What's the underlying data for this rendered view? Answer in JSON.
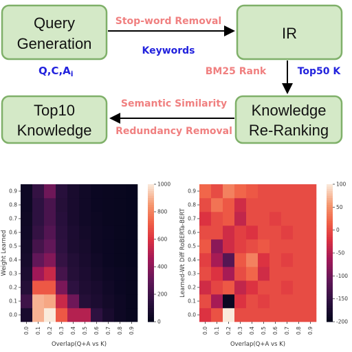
{
  "flow": {
    "boxes": {
      "query_generation": [
        "Query",
        "Generation"
      ],
      "ir": [
        "IR"
      ],
      "top10_knowledge": [
        "Top10",
        "Knowledge"
      ],
      "knowledge_reranking": [
        "Knowledge",
        "Re-Ranking"
      ]
    },
    "labels": {
      "stopword_removal": "Stop-word Removal",
      "keywords": "Keywords",
      "qca": "Q,C,A",
      "qca_sub": "i",
      "bm25_rank": "BM25 Rank",
      "top50k": "Top50 K",
      "semantic_similarity": "Semantic Similarity",
      "redundancy_removal": "Redundancy Removal"
    },
    "colors": {
      "box_fill": "#d4e9c7",
      "box_stroke": "#7fb069",
      "red_label": "#f08080",
      "blue_label": "#2222dd"
    }
  },
  "chart_data": [
    {
      "type": "heatmap",
      "xlabel": "Overlap(Q+A vs K)",
      "ylabel": "Weight Learned",
      "x": [
        "0.0",
        "0.1",
        "0.2",
        "0.3",
        "0.4",
        "0.5",
        "0.6",
        "0.7",
        "0.8",
        "0.9"
      ],
      "y": [
        "0.0",
        "0.1",
        "0.2",
        "0.3",
        "0.4",
        "0.5",
        "0.6",
        "0.7",
        "0.8",
        "0.9"
      ],
      "colorbar": {
        "min": 0,
        "max": 1000,
        "ticks": [
          "0",
          "200",
          "400",
          "600",
          "800",
          "1000"
        ],
        "colormap": "rocket"
      },
      "values": [
        [
          80,
          900,
          1000,
          700,
          500,
          500,
          150,
          80,
          40,
          20
        ],
        [
          200,
          900,
          880,
          550,
          330,
          120,
          90,
          60,
          40,
          20
        ],
        [
          120,
          700,
          700,
          360,
          150,
          100,
          80,
          50,
          30,
          20
        ],
        [
          90,
          450,
          550,
          220,
          120,
          90,
          60,
          40,
          30,
          20
        ],
        [
          70,
          300,
          380,
          170,
          110,
          80,
          50,
          30,
          20,
          15
        ],
        [
          60,
          220,
          300,
          150,
          90,
          70,
          40,
          30,
          20,
          15
        ],
        [
          50,
          170,
          260,
          140,
          90,
          60,
          40,
          30,
          20,
          15
        ],
        [
          45,
          150,
          230,
          130,
          80,
          50,
          35,
          25,
          20,
          15
        ],
        [
          40,
          150,
          230,
          120,
          80,
          50,
          30,
          25,
          20,
          15
        ],
        [
          40,
          170,
          330,
          130,
          80,
          50,
          30,
          25,
          20,
          15
        ]
      ]
    },
    {
      "type": "heatmap",
      "xlabel": "Overlap(Q+A vs K)",
      "ylabel": "Learned-Wt Diff RoBERTa-BERT",
      "x": [
        "0.0",
        "0.1",
        "0.2",
        "0.3",
        "0.4",
        "0.5",
        "0.6",
        "0.7",
        "0.8",
        "0.9"
      ],
      "y": [
        "0.0",
        "0.1",
        "0.2",
        "0.3",
        "0.4",
        "0.5",
        "0.6",
        "0.7",
        "0.8",
        "0.9"
      ],
      "colorbar": {
        "min": -200,
        "max": 100,
        "ticks": [
          "100",
          "50",
          "0",
          "-50",
          "-100",
          "-150",
          "-200"
        ],
        "colormap": "rocket"
      },
      "values": [
        [
          -20,
          5,
          100,
          0,
          0,
          0,
          0,
          0,
          0,
          0
        ],
        [
          0,
          -60,
          -190,
          -20,
          0,
          -10,
          0,
          0,
          0,
          0
        ],
        [
          -30,
          -5,
          10,
          -40,
          -20,
          0,
          0,
          -10,
          0,
          0
        ],
        [
          0,
          -20,
          -60,
          0,
          20,
          -30,
          0,
          0,
          0,
          0
        ],
        [
          -10,
          -60,
          -120,
          10,
          40,
          -20,
          0,
          -10,
          0,
          0
        ],
        [
          10,
          -80,
          -30,
          -10,
          0,
          10,
          0,
          0,
          0,
          0
        ],
        [
          0,
          0,
          -30,
          -10,
          -20,
          0,
          0,
          -10,
          0,
          0
        ],
        [
          -20,
          0,
          10,
          -40,
          0,
          0,
          -10,
          0,
          0,
          0
        ],
        [
          0,
          30,
          10,
          -30,
          0,
          0,
          0,
          0,
          0,
          0
        ],
        [
          20,
          0,
          40,
          20,
          10,
          0,
          0,
          0,
          0,
          0
        ]
      ]
    }
  ]
}
